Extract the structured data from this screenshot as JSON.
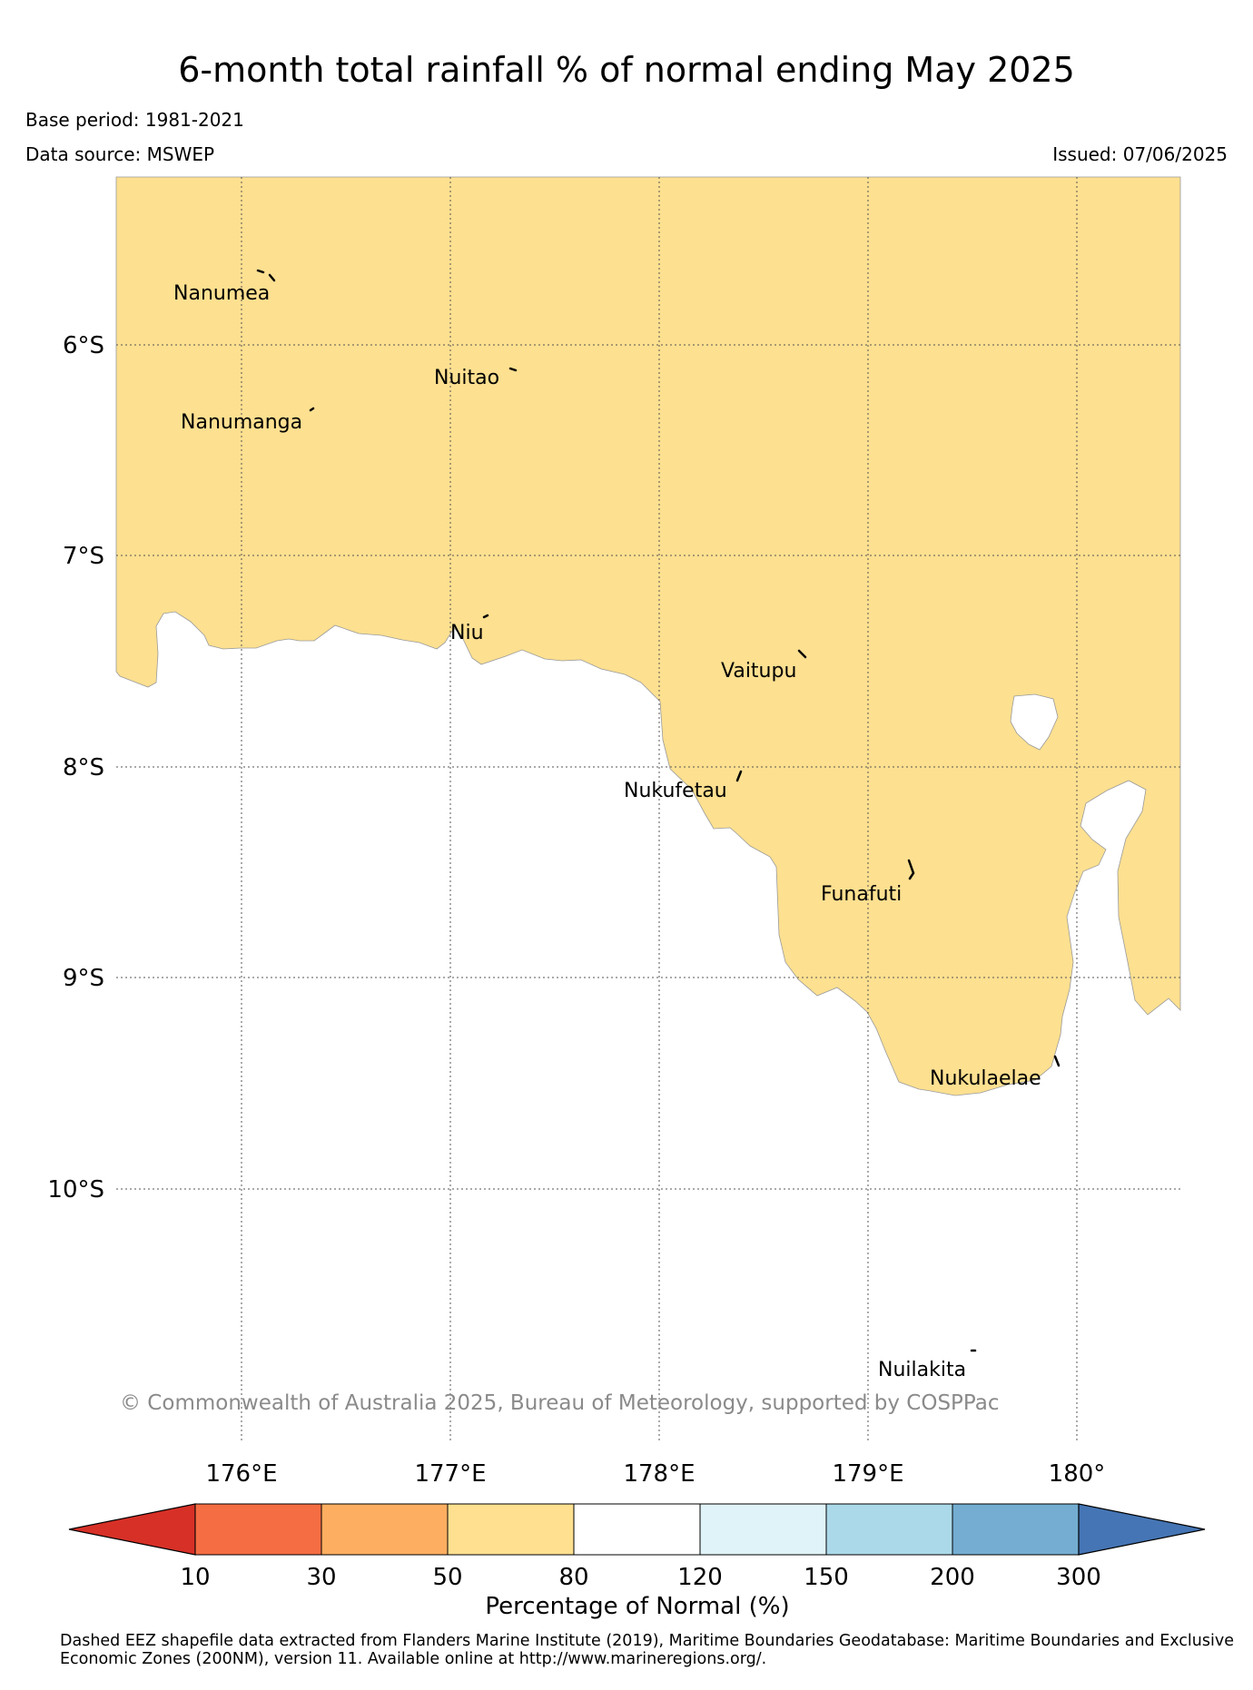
{
  "title": "6-month total rainfall % of normal ending May 2025",
  "base_period": "Base period: 1981-2021",
  "data_source": "Data source: MSWEP",
  "issued": "Issued: 07/06/2025",
  "copyright": "© Commonwealth of Australia 2025, Bureau of Meteorology, supported by COSPPac",
  "map": {
    "lat_labels": [
      "6°S",
      "7°S",
      "8°S",
      "9°S",
      "10°S"
    ],
    "lon_labels": [
      "176°E",
      "177°E",
      "178°E",
      "179°E",
      "180°"
    ],
    "islands": [
      "Nanumea",
      "Nuitao",
      "Nanumanga",
      "Niu",
      "Vaitupu",
      "Nukufetau",
      "Funafuti",
      "Nukulaelae",
      "Nuilakita"
    ],
    "colors": {
      "region_fill": "#fde090",
      "background": "#ffffff",
      "grid": "#555555"
    }
  },
  "colorbar": {
    "label": "Percentage of Normal (%)",
    "ticks": [
      "10",
      "30",
      "50",
      "80",
      "120",
      "150",
      "200",
      "300"
    ],
    "colors": [
      "#d73027",
      "#f46d43",
      "#fdae61",
      "#fee090",
      "#ffffff",
      "#e0f3f8",
      "#abd9e9",
      "#74add1",
      "#4575b4"
    ]
  },
  "footnote": "Dashed EEZ shapefile data extracted from Flanders Marine Institute (2019), Maritime Boundaries Geodatabase: Maritime Boundaries and Exclusive Economic Zones (200NM), version 11. Available online at http://www.marineregions.org/."
}
